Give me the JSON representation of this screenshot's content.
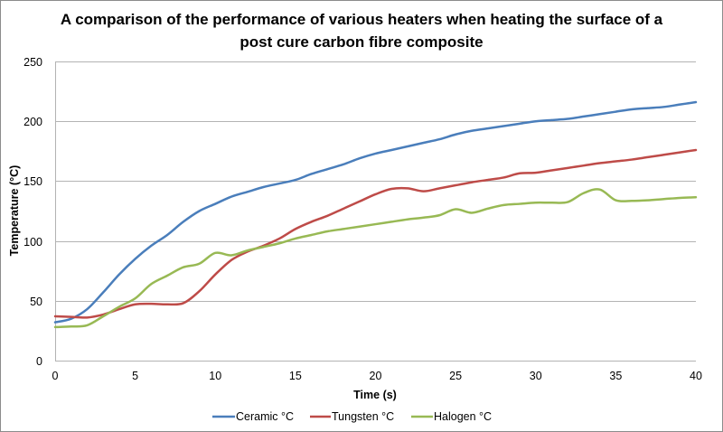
{
  "chart_data": {
    "type": "line",
    "title_lines": [
      "A comparison of the performance of various heaters when heating the surface of a",
      "post cure carbon fibre composite"
    ],
    "xlabel": "Time (s)",
    "ylabel": "Temperature (°C)",
    "xlim": [
      0,
      40
    ],
    "ylim": [
      0,
      250
    ],
    "x_ticks": [
      0,
      5,
      10,
      15,
      20,
      25,
      30,
      35,
      40
    ],
    "y_ticks": [
      0,
      50,
      100,
      150,
      200,
      250
    ],
    "x_tick_labels": [
      "0",
      "5",
      "10",
      "15",
      "20",
      "25",
      "30",
      "35",
      "40"
    ],
    "y_tick_labels": [
      "0",
      "50",
      "100",
      "150",
      "200",
      "250"
    ],
    "grid": "horizontal",
    "legend_position": "bottom",
    "x": [
      0,
      1,
      2,
      3,
      4,
      5,
      6,
      7,
      8,
      9,
      10,
      11,
      12,
      13,
      14,
      15,
      16,
      17,
      18,
      19,
      20,
      21,
      22,
      23,
      24,
      25,
      26,
      27,
      28,
      29,
      30,
      31,
      32,
      33,
      34,
      35,
      36,
      37,
      38,
      39,
      40
    ],
    "series": [
      {
        "name": "Ceramic °C",
        "color": "#4a7ebb",
        "values": [
          32,
          35,
          43,
          57,
          72,
          85,
          96,
          105,
          116,
          125,
          131,
          137,
          141,
          145,
          148,
          151,
          156,
          160,
          164,
          169,
          173,
          176,
          179,
          182,
          185,
          189,
          192,
          194,
          196,
          198,
          200,
          201,
          202,
          204,
          206,
          208,
          210,
          211,
          212,
          214,
          216
        ]
      },
      {
        "name": "Tungsten °C",
        "color": "#be4b48",
        "values": [
          37,
          36.5,
          36,
          38.5,
          43,
          47,
          47.5,
          47,
          48,
          58,
          72,
          84,
          91,
          96,
          102,
          110,
          116,
          121,
          127,
          133,
          139,
          143.5,
          144,
          141.5,
          144,
          146.5,
          149,
          151,
          153,
          156.5,
          157,
          159,
          161,
          163,
          165,
          166.5,
          168,
          170,
          172,
          174,
          176
        ]
      },
      {
        "name": "Halogen °C",
        "color": "#98b954",
        "values": [
          28,
          28.5,
          29.5,
          37,
          45,
          52,
          64,
          71,
          78,
          81,
          90,
          88,
          92,
          95,
          98,
          102,
          105,
          108,
          110,
          112,
          114,
          116,
          118,
          119.5,
          121.5,
          126.5,
          123.5,
          127,
          130,
          131,
          132,
          132,
          132.5,
          140,
          143,
          134,
          133.5,
          134,
          135,
          136,
          136.5
        ]
      }
    ]
  }
}
